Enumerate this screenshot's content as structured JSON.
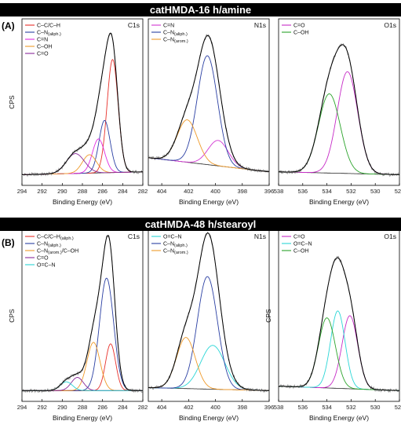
{
  "panel_a": {
    "banner": "catHMDA-16 h/amine",
    "label": "(A)"
  },
  "panel_b": {
    "banner": "catHMDA-48 h/stearoyl",
    "label": "(B)"
  },
  "chart_data": [
    {
      "type": "line",
      "row": 0,
      "col": 0,
      "region": "C1s",
      "xlabel": "Binding Energy (eV)",
      "ylabel": "CPS",
      "xlim": [
        294,
        282
      ],
      "ticks": [
        294,
        292,
        290,
        288,
        286,
        284,
        282
      ],
      "legend": [
        "C–C/C–H",
        "C–N(aliph.)",
        "C=N",
        "C–OH",
        "C=O"
      ],
      "components": [
        {
          "name": "C–C/C–H",
          "color": "#e8302a",
          "center": 285.0,
          "height": 0.8,
          "width": 0.55
        },
        {
          "name": "C–N(aliph.)",
          "color": "#2a3fa3",
          "center": 285.8,
          "height": 0.37,
          "width": 0.55
        },
        {
          "name": "C=N",
          "color": "#e02be0",
          "center": 286.4,
          "height": 0.24,
          "width": 0.6
        },
        {
          "name": "C–OH",
          "color": "#ef9a2a",
          "center": 287.3,
          "height": 0.13,
          "width": 0.7
        },
        {
          "name": "C=O",
          "color": "#8a2a9a",
          "center": 288.7,
          "height": 0.14,
          "width": 0.9
        }
      ],
      "background": [
        0.0,
        0.02
      ]
    },
    {
      "type": "line",
      "row": 0,
      "col": 1,
      "region": "N1s",
      "xlabel": "Binding Energy (eV)",
      "ylabel": "",
      "xlim": [
        405,
        396
      ],
      "ticks": [
        404,
        402,
        400,
        398,
        396
      ],
      "legend": [
        "C=N",
        "C–N(aliph.)",
        "C–N(arom.)"
      ],
      "components": [
        {
          "name": "C=N",
          "color": "#d236d2",
          "center": 399.8,
          "height": 0.18,
          "width": 0.75
        },
        {
          "name": "C–N(aliph.)",
          "color": "#2a3fa3",
          "center": 400.6,
          "height": 0.77,
          "width": 0.75
        },
        {
          "name": "C–N(arom.)",
          "color": "#ef9a2a",
          "center": 402.1,
          "height": 0.3,
          "width": 0.75
        }
      ],
      "background": [
        0.12,
        0.02
      ]
    },
    {
      "type": "line",
      "row": 0,
      "col": 2,
      "region": "O1s",
      "xlabel": "Binding Energy (eV)",
      "ylabel": "",
      "xlim": [
        538,
        528
      ],
      "ticks": [
        538,
        536,
        534,
        532,
        530,
        528
      ],
      "legend": [
        "C=O",
        "C–OH"
      ],
      "components": [
        {
          "name": "C=O",
          "color": "#c62ac6",
          "center": 532.3,
          "height": 0.72,
          "width": 0.85
        },
        {
          "name": "C–OH",
          "color": "#2aa32a",
          "center": 533.8,
          "height": 0.56,
          "width": 0.9
        }
      ],
      "background": [
        0.02,
        0.0
      ]
    },
    {
      "type": "line",
      "row": 1,
      "col": 0,
      "region": "C1s",
      "xlabel": "Binding Energy (eV)",
      "ylabel": "CPS",
      "xlim": [
        294,
        282
      ],
      "ticks": [
        294,
        292,
        290,
        288,
        286,
        284,
        282
      ],
      "legend": [
        "C–C/C–H(aliph.)",
        "C–N(aliph.)",
        "C–N(arom.)/C–OH",
        "C=O",
        "O=C–N"
      ],
      "components": [
        {
          "name": "C–C/C–H(aliph.)",
          "color": "#e8302a",
          "center": 285.2,
          "height": 0.32,
          "width": 0.5
        },
        {
          "name": "C–N(aliph.)",
          "color": "#2a3fa3",
          "center": 285.6,
          "height": 0.77,
          "width": 0.7
        },
        {
          "name": "C–N(arom.)/C–OH",
          "color": "#ef9a2a",
          "center": 286.9,
          "height": 0.33,
          "width": 0.65
        },
        {
          "name": "C=O",
          "color": "#8a2a9a",
          "center": 288.5,
          "height": 0.09,
          "width": 0.6
        },
        {
          "name": "O=C–N",
          "color": "#2ad6d6",
          "center": 289.6,
          "height": 0.06,
          "width": 0.6
        }
      ],
      "background": [
        0.0,
        0.0
      ]
    },
    {
      "type": "line",
      "row": 1,
      "col": 1,
      "region": "N1s",
      "xlabel": "Binding Energy (eV)",
      "ylabel": "",
      "xlim": [
        405,
        396
      ],
      "ticks": [
        404,
        402,
        400,
        398,
        396
      ],
      "legend": [
        "O=C–N",
        "C–N(aliph.)",
        "C–N(arom.)"
      ],
      "components": [
        {
          "name": "O=C–N",
          "color": "#2ad6d6",
          "center": 400.2,
          "height": 0.3,
          "width": 0.9
        },
        {
          "name": "C–N(aliph.)",
          "color": "#2a3fa3",
          "center": 400.6,
          "height": 0.77,
          "width": 0.75
        },
        {
          "name": "C–N(arom.)",
          "color": "#ef9a2a",
          "center": 402.2,
          "height": 0.35,
          "width": 0.7
        }
      ],
      "background": [
        0.02,
        0.0
      ]
    },
    {
      "type": "line",
      "row": 1,
      "col": 2,
      "region": "O1s",
      "xlabel": "Binding Energy (eV)",
      "ylabel": "CPS",
      "xlim": [
        538,
        528
      ],
      "ticks": [
        538,
        536,
        534,
        532,
        530,
        528
      ],
      "legend": [
        "C=O",
        "O=C–N",
        "C–OH"
      ],
      "components": [
        {
          "name": "C=O",
          "color": "#c62ac6",
          "center": 532.1,
          "height": 0.5,
          "width": 0.65
        },
        {
          "name": "O=C–N",
          "color": "#2ad6d6",
          "center": 533.1,
          "height": 0.53,
          "width": 0.6
        },
        {
          "name": "C–OH",
          "color": "#2aa32a",
          "center": 534.0,
          "height": 0.48,
          "width": 0.7
        }
      ],
      "background": [
        0.03,
        0.0
      ]
    }
  ]
}
